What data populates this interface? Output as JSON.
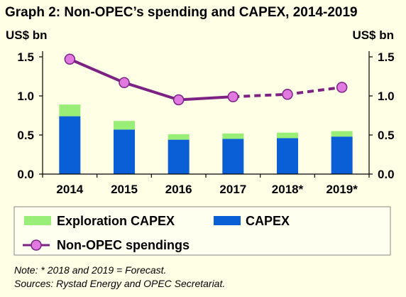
{
  "chart_data": {
    "type": "bar",
    "title": "Graph 2: Non-OPEC’s spending and CAPEX, 2014-2019",
    "ylabel_left": "US$ bn",
    "ylabel_right": "US$ bn",
    "ylim": [
      0,
      1.5
    ],
    "yticks": [
      "0.0",
      "0.5",
      "1.0",
      "1.5"
    ],
    "categories": [
      "2014",
      "2015",
      "2016",
      "2017",
      "2018*",
      "2019*"
    ],
    "stacked": true,
    "series": [
      {
        "name": "CAPEX",
        "kind": "bar",
        "color": "#0A5FD6",
        "values": [
          0.74,
          0.57,
          0.44,
          0.45,
          0.46,
          0.48
        ]
      },
      {
        "name": "Exploration CAPEX",
        "kind": "bar",
        "color": "#99EE77",
        "values": [
          0.15,
          0.11,
          0.07,
          0.07,
          0.07,
          0.07
        ]
      },
      {
        "name": "Non-OPEC spendings",
        "kind": "line",
        "color": "#7B2283",
        "marker_color": "#E07AE0",
        "values": [
          1.47,
          1.17,
          0.95,
          0.99,
          1.02,
          1.11
        ],
        "forecast_from_index": 3
      }
    ],
    "legend": {
      "placement": "bottom",
      "items": [
        "Exploration CAPEX",
        "CAPEX",
        "Non-OPEC spendings"
      ]
    },
    "grid": false
  },
  "notes": {
    "note": "Note: * 2018 and 2019 = Forecast.",
    "sources": "Sources: Rystad Energy and OPEC Secretariat."
  }
}
